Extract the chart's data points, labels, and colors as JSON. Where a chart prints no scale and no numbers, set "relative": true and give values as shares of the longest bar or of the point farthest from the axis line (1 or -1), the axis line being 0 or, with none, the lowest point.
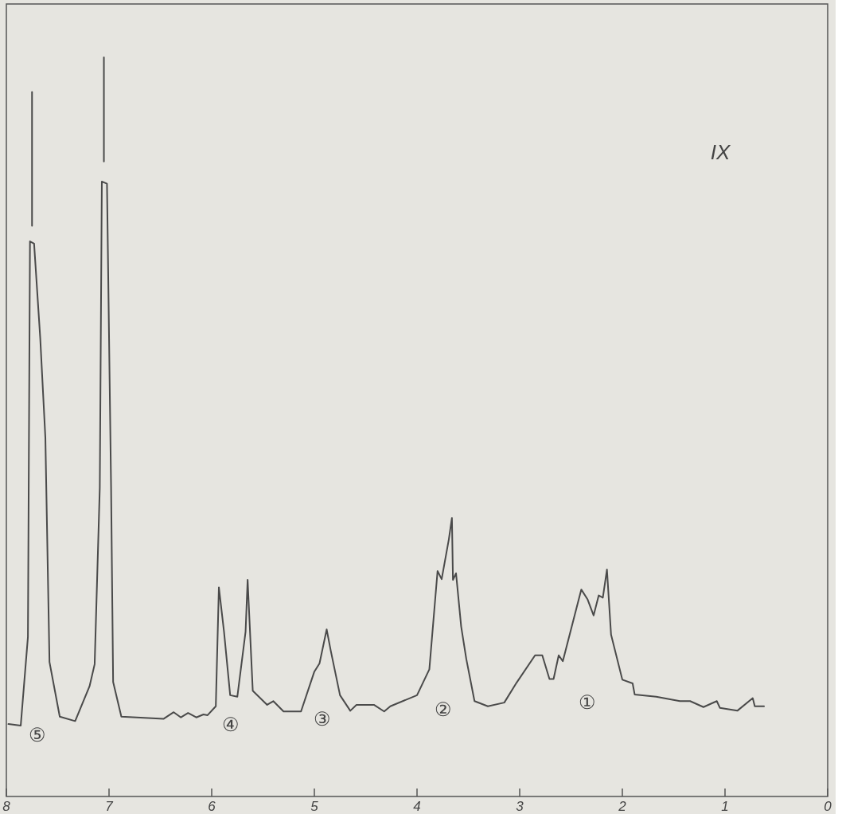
{
  "chart_data": {
    "type": "line",
    "relative": true,
    "xlim": [
      8,
      0
    ],
    "xticks": [
      8,
      7,
      6,
      5,
      4,
      3,
      2,
      1,
      0
    ],
    "grid": false,
    "line_style": "solid",
    "annotations": [
      "IX",
      "⑤",
      "④",
      "③",
      "②",
      "①"
    ],
    "series": [
      {
        "color": "#4a4a4a",
        "x": [
          7.98,
          7.86,
          7.79,
          7.77,
          7.73,
          7.67,
          7.62,
          7.58,
          7.48,
          7.33,
          7.19,
          7.14,
          7.09,
          7.07,
          7.02,
          6.98,
          6.96,
          6.88,
          6.47,
          6.37,
          6.3,
          6.23,
          6.15,
          6.08,
          6.04,
          5.96,
          5.93,
          5.88,
          5.82,
          5.75,
          5.67,
          5.65,
          5.6,
          5.46,
          5.4,
          5.3,
          5.13,
          5.0,
          4.95,
          4.88,
          4.84,
          4.75,
          4.65,
          4.59,
          4.42,
          4.32,
          4.26,
          4.0,
          3.88,
          3.8,
          3.76,
          3.69,
          3.66,
          3.65,
          3.62,
          3.57,
          3.52,
          3.44,
          3.31,
          3.15,
          3.03,
          2.85,
          2.78,
          2.71,
          2.67,
          2.62,
          2.58,
          2.4,
          2.34,
          2.28,
          2.23,
          2.19,
          2.15,
          2.11,
          2.0,
          1.9,
          1.88,
          1.67,
          1.44,
          1.34,
          1.21,
          1.08,
          1.05,
          0.88,
          0.73,
          0.71,
          0.62
        ],
        "values": [
          0.098,
          0.096,
          0.216,
          0.751,
          0.748,
          0.62,
          0.485,
          0.182,
          0.108,
          0.102,
          0.149,
          0.179,
          0.418,
          0.832,
          0.829,
          0.418,
          0.155,
          0.108,
          0.105,
          0.114,
          0.107,
          0.113,
          0.107,
          0.111,
          0.11,
          0.122,
          0.283,
          0.223,
          0.137,
          0.135,
          0.223,
          0.293,
          0.143,
          0.124,
          0.129,
          0.115,
          0.115,
          0.169,
          0.18,
          0.226,
          0.197,
          0.137,
          0.116,
          0.124,
          0.124,
          0.115,
          0.122,
          0.137,
          0.172,
          0.305,
          0.294,
          0.348,
          0.377,
          0.293,
          0.302,
          0.23,
          0.186,
          0.129,
          0.122,
          0.127,
          0.154,
          0.191,
          0.191,
          0.159,
          0.159,
          0.191,
          0.183,
          0.28,
          0.267,
          0.245,
          0.272,
          0.269,
          0.307,
          0.219,
          0.158,
          0.153,
          0.138,
          0.135,
          0.129,
          0.129,
          0.121,
          0.129,
          0.12,
          0.116,
          0.133,
          0.122,
          0.122
        ]
      },
      {
        "color": "#4a4a4a",
        "x": [
          7.75,
          7.75
        ],
        "values": [
          0.772,
          0.953
        ]
      },
      {
        "color": "#4a4a4a",
        "x": [
          7.05,
          7.05
        ],
        "values": [
          0.859,
          1.0
        ]
      }
    ]
  }
}
